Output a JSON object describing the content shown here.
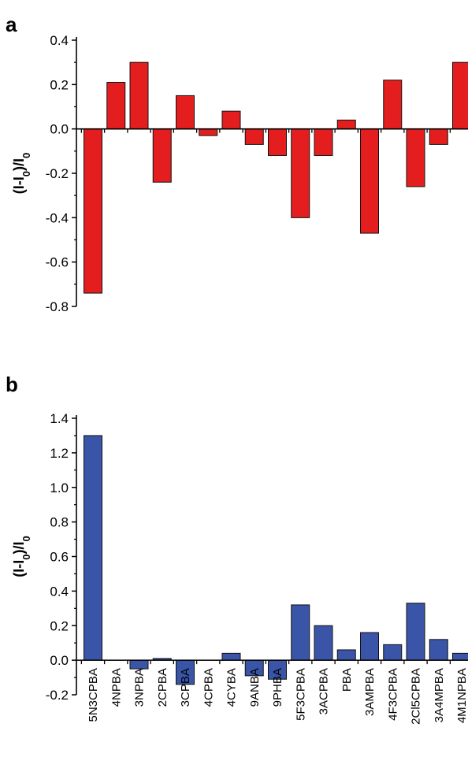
{
  "colors": {
    "panel_a_bar": "#e41e1e",
    "panel_b_bar": "#3a55a8",
    "axis": "#000000"
  },
  "chart_data": [
    {
      "panel": "a",
      "type": "bar",
      "categories": [
        "5N3CPBA",
        "4NPBA",
        "3NPBA",
        "2CPBA",
        "3CPBA",
        "4CPBA",
        "4CYBA",
        "9ANBA",
        "9PHBA",
        "5F3CPBA",
        "3ACPBA",
        "PBA",
        "3AMPBA",
        "4F3CPBA",
        "2Cl5CPBA",
        "3A4MPBA",
        "4M1NPBA"
      ],
      "values": [
        -0.74,
        0.21,
        0.3,
        -0.24,
        0.15,
        -0.03,
        0.08,
        -0.07,
        -0.12,
        -0.4,
        -0.12,
        0.04,
        -0.47,
        0.22,
        -0.26,
        -0.07,
        0.3
      ],
      "ylim": [
        -0.8,
        0.4
      ],
      "yticks": [
        "-0.8",
        "-0.6",
        "-0.4",
        "-0.2",
        "0.0",
        "0.2",
        "0.4"
      ],
      "ylabel": "(I-I0)/I0",
      "color": "#e41e1e",
      "legend": "none"
    },
    {
      "panel": "b",
      "type": "bar",
      "categories": [
        "5N3CPBA",
        "4NPBA",
        "3NPBA",
        "2CPBA",
        "3CPBA",
        "4CPBA",
        "4CYBA",
        "9ANBA",
        "9PHBA",
        "5F3CPBA",
        "3ACPBA",
        "PBA",
        "3AMPBA",
        "4F3CPBA",
        "2Cl5CPBA",
        "3A4MPBA",
        "4M1NPBA"
      ],
      "values": [
        1.3,
        0.0,
        -0.05,
        0.01,
        -0.14,
        0.0,
        0.04,
        -0.09,
        -0.11,
        0.32,
        0.2,
        0.06,
        0.16,
        0.09,
        0.33,
        0.12,
        0.04
      ],
      "ylim": [
        -0.2,
        1.4
      ],
      "yticks": [
        "-0.2",
        "0.0",
        "0.2",
        "0.4",
        "0.6",
        "0.8",
        "1.0",
        "1.2",
        "1.4"
      ],
      "ylabel": "(I-I0)/I0",
      "color": "#3a55a8",
      "legend": "none"
    }
  ]
}
